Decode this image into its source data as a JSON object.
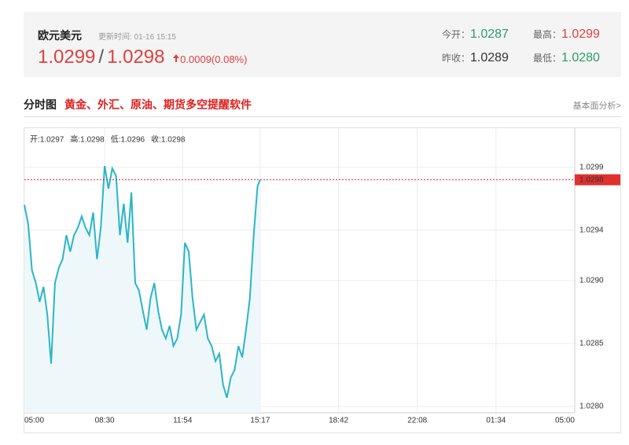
{
  "header": {
    "pair": "欧元美元",
    "update_time": "更新时间: 01-16 15:15",
    "bid": "1.0299",
    "ask": "1.0298",
    "change": "0.0009(0.08%)",
    "stats": [
      {
        "label": "今开：",
        "value": "1.0287"
      },
      {
        "label": "最高：",
        "value": "1.0299"
      },
      {
        "label": "昨收：",
        "value": "1.0289"
      },
      {
        "label": "最低：",
        "value": "1.0280"
      }
    ]
  },
  "section": {
    "title": "分时图",
    "promo_link": "黄金、外汇、原油、期货多空提醒软件",
    "analysis_link": "基本面分析>"
  },
  "chart_data": {
    "type": "line",
    "ohlc": [
      {
        "label": "开:",
        "value": "1.0297"
      },
      {
        "label": "高:",
        "value": "1.0298"
      },
      {
        "label": "低:",
        "value": "1.0296"
      },
      {
        "label": "收:",
        "value": "1.0298"
      }
    ],
    "x": [
      0,
      10,
      20,
      30,
      40,
      50,
      60,
      70,
      80,
      90,
      100,
      110,
      120,
      130,
      140,
      150,
      160,
      170,
      180,
      190,
      200,
      210,
      220,
      230,
      240,
      250,
      260,
      270,
      280,
      290,
      300,
      310,
      320,
      330,
      340,
      350,
      360,
      370,
      380,
      390,
      400,
      410,
      420,
      430,
      440,
      450,
      460,
      470,
      480,
      490,
      500,
      510,
      520,
      530,
      540,
      550,
      560,
      570,
      580,
      590,
      600,
      610,
      617
    ],
    "series": [
      {
        "color": "#2bb5c8",
        "fill": "#eef8fb",
        "values": [
          1.0296,
          1.02945,
          1.02908,
          1.02898,
          1.02883,
          1.02895,
          1.02873,
          1.02834,
          1.02898,
          1.0291,
          1.02917,
          1.02936,
          1.02923,
          1.02936,
          1.02942,
          1.02951,
          1.02942,
          1.02936,
          1.02954,
          1.02917,
          1.02942,
          1.02991,
          1.02973,
          1.02989,
          1.02983,
          1.02936,
          1.02961,
          1.0293,
          1.0297,
          1.02898,
          1.02892,
          1.02876,
          1.02861,
          1.02886,
          1.02898,
          1.02876,
          1.02861,
          1.02854,
          1.02864,
          1.02848,
          1.02854,
          1.02873,
          1.0293,
          1.02923,
          1.02886,
          1.02861,
          1.02867,
          1.02873,
          1.02854,
          1.02848,
          1.02836,
          1.02842,
          1.02817,
          1.02807,
          1.02823,
          1.02829,
          1.02848,
          1.02839,
          1.02861,
          1.02886,
          1.02936,
          1.02975,
          1.0298
        ]
      }
    ],
    "last_price": 1.0298,
    "last_color": "#e03030",
    "xlim": [
      0,
      1440
    ],
    "xticks": [
      {
        "value": 0,
        "label": "05:00"
      },
      {
        "value": 210,
        "label": "08:30"
      },
      {
        "value": 414,
        "label": "11:54"
      },
      {
        "value": 617,
        "label": "15:17"
      },
      {
        "value": 822,
        "label": "18:42"
      },
      {
        "value": 1028,
        "label": "22:08"
      },
      {
        "value": 1234,
        "label": "01:34"
      },
      {
        "value": 1440,
        "label": "05:00"
      }
    ],
    "ylim": [
      1.02795,
      1.03021
    ],
    "yticks": [
      {
        "value": 1.028,
        "label": "1.0280"
      },
      1.0285,
      {
        "value": 1.029,
        "label": "1.0290"
      },
      1.0294,
      1.0299
    ],
    "grid": true
  }
}
